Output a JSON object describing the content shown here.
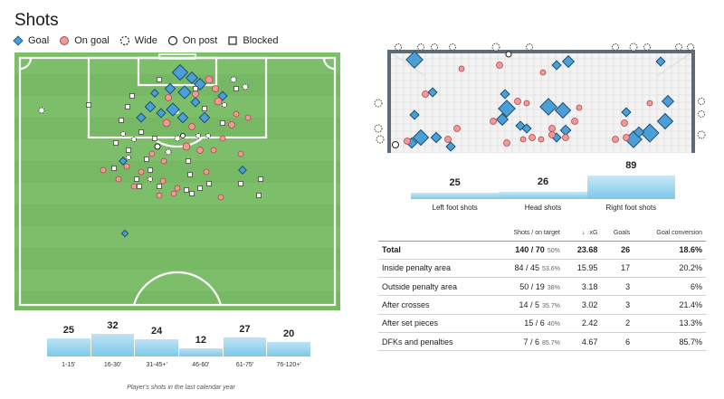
{
  "title": "Shots",
  "legend": [
    {
      "label": "Goal",
      "icon": "goal-diamond-icon"
    },
    {
      "label": "On goal",
      "icon": "on-goal-circle-icon"
    },
    {
      "label": "Wide",
      "icon": "wide-dashed-circle-icon"
    },
    {
      "label": "On post",
      "icon": "on-post-circle-icon"
    },
    {
      "label": "Blocked",
      "icon": "blocked-square-icon"
    }
  ],
  "colors": {
    "pitch_light": "#7dbd6b",
    "pitch_dark": "#72b560",
    "goal": "#4a9fd6",
    "on_goal": "#ef9a9a",
    "bar": "#7cc8ea"
  },
  "time_bars": [
    {
      "label": "1-15'",
      "value": 25
    },
    {
      "label": "16-30'",
      "value": 32
    },
    {
      "label": "31-45+'",
      "value": 24
    },
    {
      "label": "46-60'",
      "value": 12
    },
    {
      "label": "61-75'",
      "value": 27
    },
    {
      "label": "76-120+'",
      "value": 20
    }
  ],
  "caption": "Player's shots in the last calendar year",
  "foot_bars": [
    {
      "label": "Left foot shots",
      "value": 25
    },
    {
      "label": "Head shots",
      "value": 26
    },
    {
      "label": "Right foot shots",
      "value": 89
    }
  ],
  "table": {
    "headers": [
      "",
      "Shots / on target",
      "xG",
      "Goals",
      "Goal conversion"
    ],
    "sort_arrow": "↓",
    "rows": [
      {
        "name": "Total",
        "shots": "140 / 70",
        "pct": "50%",
        "xg": "23.68",
        "goals": "26",
        "conv": "18.6%"
      },
      {
        "name": "Inside penalty area",
        "shots": "84 / 45",
        "pct": "53.6%",
        "xg": "15.95",
        "goals": "17",
        "conv": "20.2%"
      },
      {
        "name": "Outside penalty area",
        "shots": "50 / 19",
        "pct": "38%",
        "xg": "3.18",
        "goals": "3",
        "conv": "6%"
      },
      {
        "name": "After crosses",
        "shots": "14 / 5",
        "pct": "35.7%",
        "xg": "3.02",
        "goals": "3",
        "conv": "21.4%"
      },
      {
        "name": "After set pieces",
        "shots": "15 / 6",
        "pct": "40%",
        "xg": "2.42",
        "goals": "2",
        "conv": "13.3%"
      },
      {
        "name": "DFKs and penalties",
        "shots": "7 / 6",
        "pct": "85.7%",
        "xg": "4.67",
        "goals": "6",
        "conv": "85.7%"
      }
    ]
  }
}
